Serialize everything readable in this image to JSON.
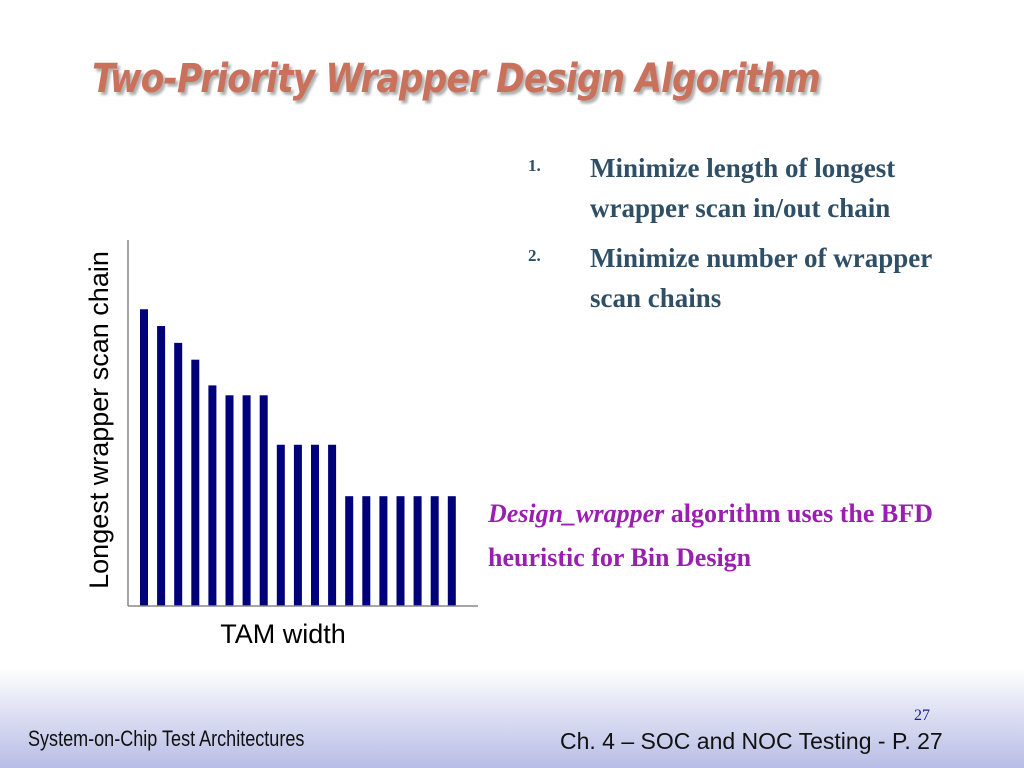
{
  "slide": {
    "title": "Two-Priority Wrapper Design Algorithm",
    "bullets": [
      {
        "number": "1.",
        "text": "Minimize length of longest wrapper scan in/out chain"
      },
      {
        "number": "2.",
        "text": "Minimize number of wrapper scan chains"
      }
    ],
    "note": {
      "italic_part": "Design_wrapper",
      "rest": " algorithm uses the BFD heuristic for Bin Design"
    },
    "page_number": "27",
    "footer_left": "System-on-Chip Test Architectures",
    "footer_right": "Ch. 4 – SOC and NOC Testing - P. 27"
  },
  "colors": {
    "title": "#c9715b",
    "bullets": "#2f4f66",
    "note": "#9a1fb0",
    "bars": "#00007a",
    "footer_band": "#b8bde6"
  },
  "chart_data": {
    "type": "bar",
    "xlabel": "TAM width",
    "ylabel": "Longest wrapper scan chain",
    "values": [
      30,
      28.3,
      26.6,
      24.9,
      22.3,
      21.3,
      21.3,
      21.3,
      16.3,
      16.3,
      16.3,
      16.3,
      11.1,
      11.1,
      11.1,
      11.1,
      11.1,
      11.1,
      11.1
    ],
    "ylim": [
      0,
      37
    ],
    "grid": false,
    "legend": "none"
  }
}
